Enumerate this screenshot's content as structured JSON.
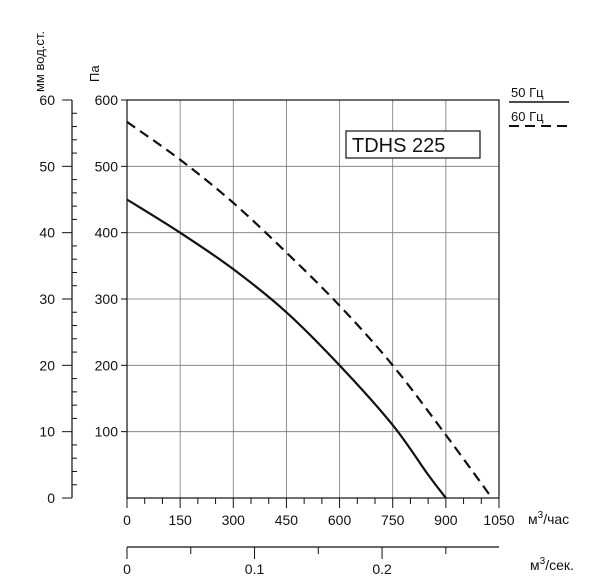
{
  "chart_data": {
    "type": "line",
    "title": "TDHS 225",
    "left_axis_mm": {
      "label": "мм вод.ст.",
      "ticks": [
        "0",
        "10",
        "20",
        "30",
        "40",
        "50",
        "60"
      ],
      "range": [
        0,
        60
      ]
    },
    "left_axis_pa": {
      "label": "Па",
      "ticks": [
        "100",
        "200",
        "300",
        "400",
        "500",
        "600"
      ],
      "range": [
        0,
        600
      ]
    },
    "x_axis_m3h": {
      "label": "м³/час",
      "label_base": "м",
      "label_sup": "3",
      "label_rest": "/час",
      "ticks": [
        "0",
        "150",
        "300",
        "450",
        "600",
        "750",
        "900",
        "1050"
      ],
      "range": [
        0,
        1050
      ]
    },
    "x_axis_m3s": {
      "label": "м³/сек.",
      "label_base": "м",
      "label_sup": "3",
      "label_rest": "/сек.",
      "ticks": [
        "0",
        "0.1",
        "0.2"
      ],
      "range": [
        0,
        0.2917
      ]
    },
    "legend": {
      "position": "top-right",
      "entries": [
        "50 Гц",
        "60 Гц"
      ]
    },
    "grid": true,
    "series": [
      {
        "name": "50 Гц",
        "style": "solid",
        "x": [
          0,
          150,
          300,
          450,
          600,
          750,
          850,
          900
        ],
        "y": [
          450,
          400,
          345,
          280,
          200,
          110,
          35,
          0
        ]
      },
      {
        "name": "60 Гц",
        "style": "dashed",
        "x": [
          0,
          150,
          300,
          450,
          600,
          750,
          900,
          1030
        ],
        "y": [
          567,
          510,
          445,
          370,
          290,
          200,
          95,
          0
        ]
      }
    ]
  }
}
